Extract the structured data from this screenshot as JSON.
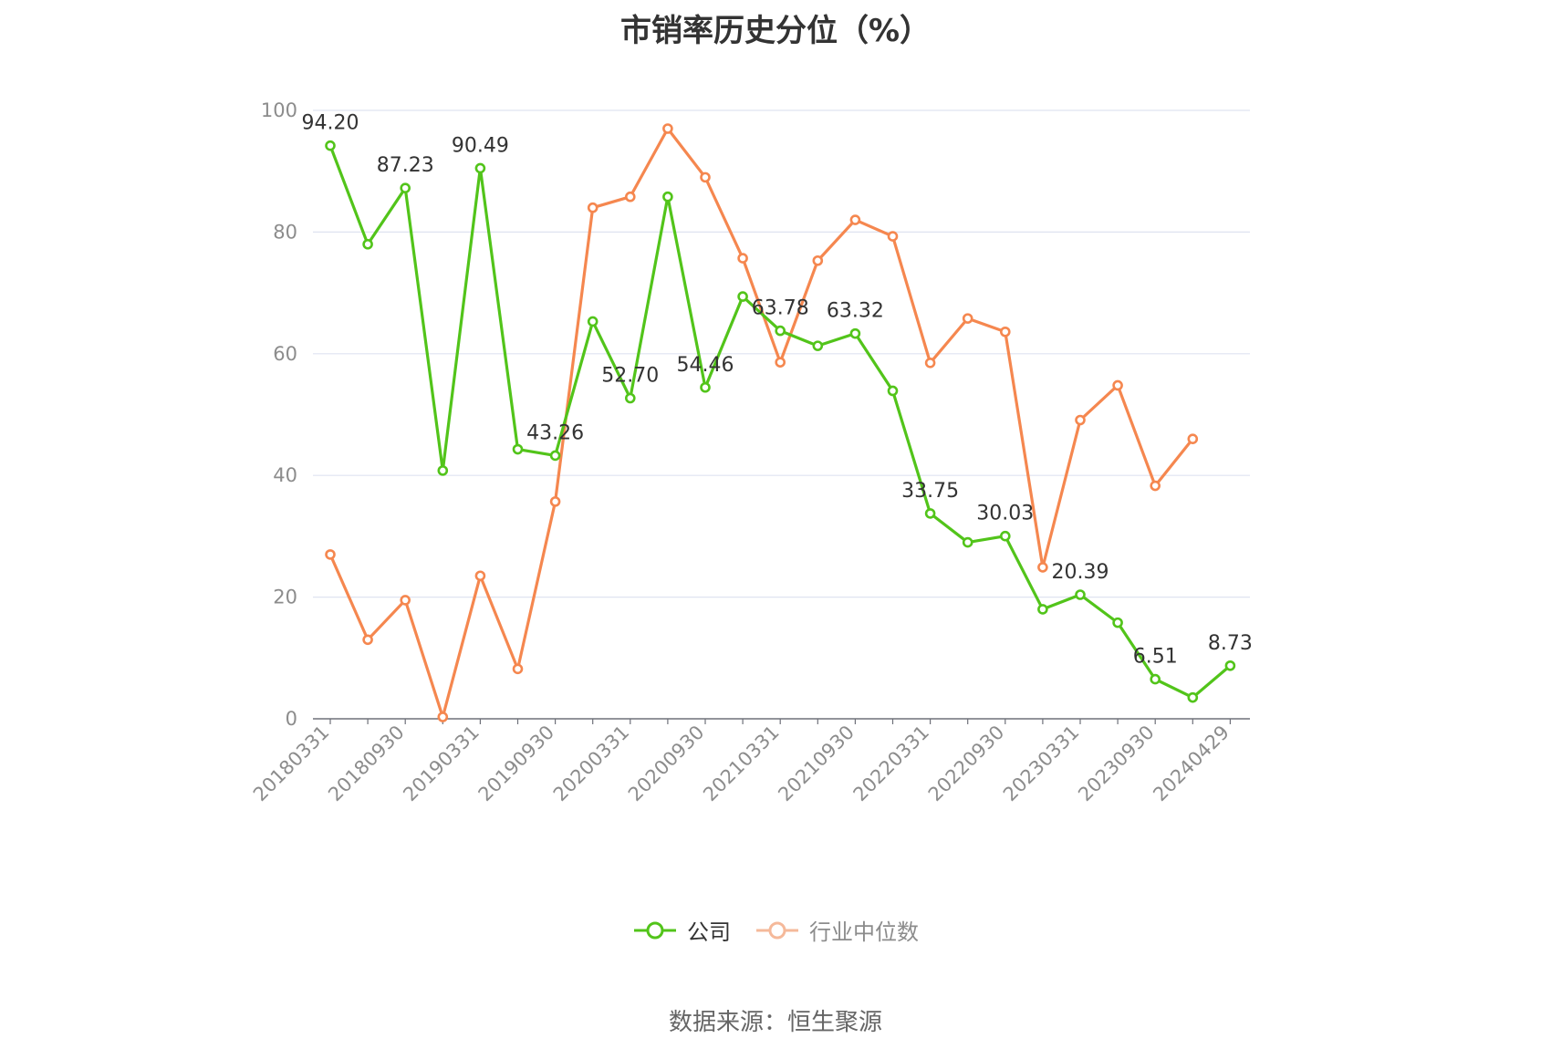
{
  "title": "市销率历史分位（%）",
  "source": "数据来源：恒生聚源",
  "chart_data": {
    "type": "line",
    "title": "市销率历史分位（%）",
    "ylim": [
      0,
      100
    ],
    "y_ticks": [
      0,
      20,
      40,
      60,
      80,
      100
    ],
    "grid": true,
    "legend_position": "bottom",
    "x": [
      "20180331",
      "20180630",
      "20180930",
      "20181231",
      "20190331",
      "20190630",
      "20190930",
      "20191231",
      "20200331",
      "20200630",
      "20200930",
      "20201231",
      "20210331",
      "20210630",
      "20210930",
      "20211231",
      "20220331",
      "20220630",
      "20220930",
      "20221231",
      "20230331",
      "20230630",
      "20230930",
      "20231231",
      "20240429"
    ],
    "x_tick_labels": [
      "20180331",
      "20180930",
      "20190331",
      "20190930",
      "20200331",
      "20200930",
      "20210331",
      "20210930",
      "20220331",
      "20220930",
      "20230331",
      "20230930",
      "20240429"
    ],
    "series": [
      {
        "name": "公司",
        "color": "#52c41a",
        "values": [
          94.2,
          78.0,
          87.23,
          40.8,
          90.49,
          44.3,
          43.26,
          65.3,
          52.7,
          85.8,
          54.46,
          69.4,
          63.78,
          61.3,
          63.32,
          53.9,
          33.75,
          29.0,
          30.03,
          18.0,
          20.39,
          15.8,
          6.51,
          3.5,
          8.73
        ],
        "labels": [
          "94.20",
          null,
          "87.23",
          null,
          "90.49",
          null,
          "43.26",
          null,
          "52.70",
          null,
          "54.46",
          null,
          "63.78",
          null,
          "63.32",
          null,
          "33.75",
          null,
          "30.03",
          null,
          "20.39",
          null,
          "6.51",
          null,
          "8.73"
        ]
      },
      {
        "name": "行业中位数",
        "color": "#f5874f",
        "values": [
          27.0,
          13.0,
          19.5,
          0.3,
          23.5,
          8.2,
          35.7,
          84.0,
          85.8,
          97.0,
          89.0,
          75.7,
          58.6,
          75.3,
          82.0,
          79.3,
          58.5,
          65.8,
          63.6,
          24.9,
          49.1,
          54.8,
          38.3,
          46.0,
          null
        ]
      }
    ]
  },
  "legend": [
    {
      "label": "公司",
      "color": "#52c41a"
    },
    {
      "label": "行业中位数",
      "color": "#f5874f"
    }
  ]
}
